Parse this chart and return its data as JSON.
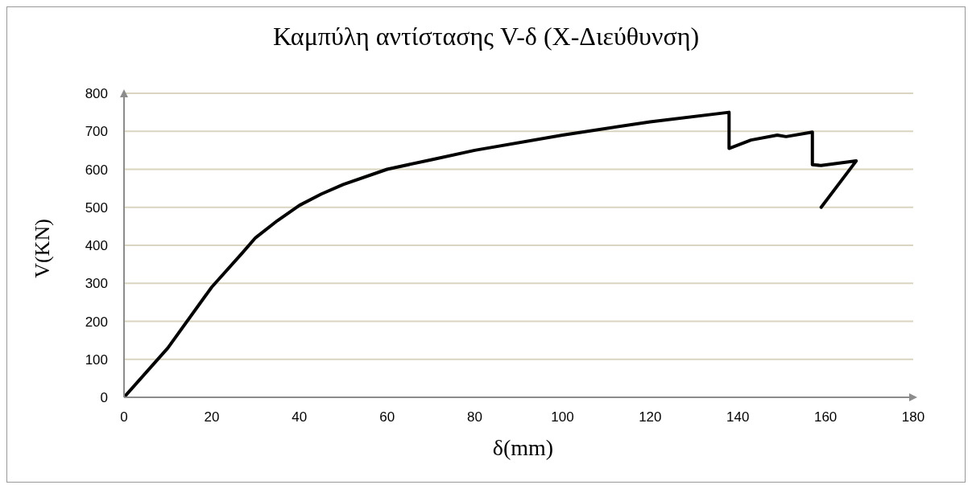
{
  "chart_data": {
    "type": "line",
    "title": "Καμπύλη αντίστασης V-δ (Χ-Διεύθυνση)",
    "xlabel": "δ(mm)",
    "ylabel": "V(KN)",
    "x": [
      0,
      10,
      20,
      27,
      30,
      35,
      40,
      45,
      50,
      60,
      70,
      80,
      100,
      120,
      138,
      138,
      143,
      149,
      151,
      157,
      157,
      159,
      167,
      159
    ],
    "series": [
      {
        "color": "#000000",
        "values": [
          0,
          130,
          290,
          380,
          420,
          465,
          505,
          535,
          560,
          600,
          625,
          650,
          690,
          725,
          750,
          655,
          677,
          690,
          686,
          698,
          612,
          610,
          622,
          500
        ]
      }
    ],
    "xlim": [
      0,
      180
    ],
    "xticks": [
      0,
      20,
      40,
      60,
      80,
      100,
      120,
      140,
      160,
      180
    ],
    "ylim": [
      0,
      800
    ],
    "yticks": [
      0,
      100,
      200,
      300,
      400,
      500,
      600,
      700,
      800
    ],
    "grid": "y",
    "marker": "none",
    "line_style": "solid"
  }
}
